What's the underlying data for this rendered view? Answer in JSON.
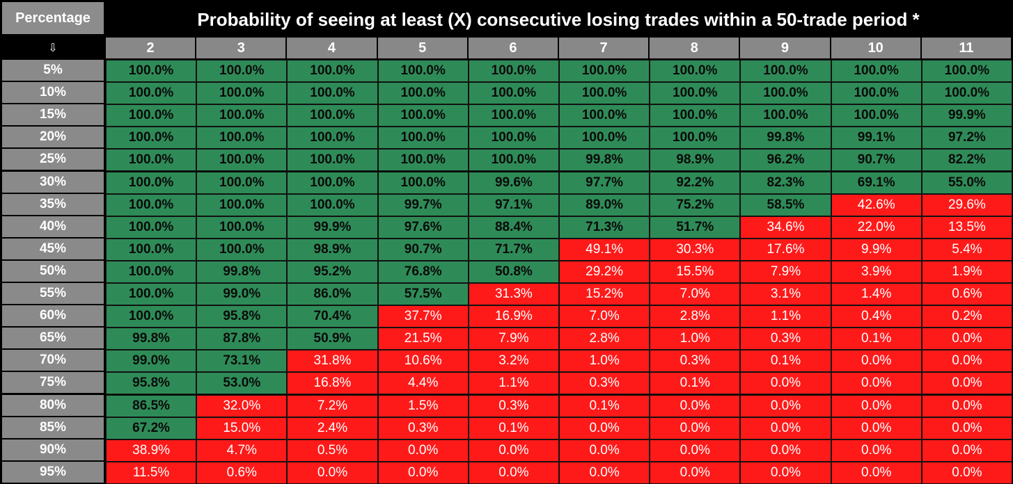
{
  "chart_data": {
    "type": "heatmap",
    "title": "Probability of seeing at least (X) consecutive losing trades within a 50-trade period *",
    "corner_label": "Percentage",
    "arrow_glyph": "⇩",
    "columns": [
      "2",
      "3",
      "4",
      "5",
      "6",
      "7",
      "8",
      "9",
      "10",
      "11"
    ],
    "rows": [
      "5%",
      "10%",
      "15%",
      "20%",
      "25%",
      "30%",
      "35%",
      "40%",
      "45%",
      "50%",
      "55%",
      "60%",
      "65%",
      "70%",
      "75%",
      "80%",
      "85%",
      "90%",
      "95%"
    ],
    "values": [
      [
        "100.0%",
        "100.0%",
        "100.0%",
        "100.0%",
        "100.0%",
        "100.0%",
        "100.0%",
        "100.0%",
        "100.0%",
        "100.0%"
      ],
      [
        "100.0%",
        "100.0%",
        "100.0%",
        "100.0%",
        "100.0%",
        "100.0%",
        "100.0%",
        "100.0%",
        "100.0%",
        "100.0%"
      ],
      [
        "100.0%",
        "100.0%",
        "100.0%",
        "100.0%",
        "100.0%",
        "100.0%",
        "100.0%",
        "100.0%",
        "100.0%",
        "99.9%"
      ],
      [
        "100.0%",
        "100.0%",
        "100.0%",
        "100.0%",
        "100.0%",
        "100.0%",
        "100.0%",
        "99.8%",
        "99.1%",
        "97.2%"
      ],
      [
        "100.0%",
        "100.0%",
        "100.0%",
        "100.0%",
        "100.0%",
        "99.8%",
        "98.9%",
        "96.2%",
        "90.7%",
        "82.2%"
      ],
      [
        "100.0%",
        "100.0%",
        "100.0%",
        "100.0%",
        "99.6%",
        "97.7%",
        "92.2%",
        "82.3%",
        "69.1%",
        "55.0%"
      ],
      [
        "100.0%",
        "100.0%",
        "100.0%",
        "99.7%",
        "97.1%",
        "89.0%",
        "75.2%",
        "58.5%",
        "42.6%",
        "29.6%"
      ],
      [
        "100.0%",
        "100.0%",
        "99.9%",
        "97.6%",
        "88.4%",
        "71.3%",
        "51.7%",
        "34.6%",
        "22.0%",
        "13.5%"
      ],
      [
        "100.0%",
        "100.0%",
        "98.9%",
        "90.7%",
        "71.7%",
        "49.1%",
        "30.3%",
        "17.6%",
        "9.9%",
        "5.4%"
      ],
      [
        "100.0%",
        "99.8%",
        "95.2%",
        "76.8%",
        "50.8%",
        "29.2%",
        "15.5%",
        "7.9%",
        "3.9%",
        "1.9%"
      ],
      [
        "100.0%",
        "99.0%",
        "86.0%",
        "57.5%",
        "31.3%",
        "15.2%",
        "7.0%",
        "3.1%",
        "1.4%",
        "0.6%"
      ],
      [
        "100.0%",
        "95.8%",
        "70.4%",
        "37.7%",
        "16.9%",
        "7.0%",
        "2.8%",
        "1.1%",
        "0.4%",
        "0.2%"
      ],
      [
        "99.8%",
        "87.8%",
        "50.9%",
        "21.5%",
        "7.9%",
        "2.8%",
        "1.0%",
        "0.3%",
        "0.1%",
        "0.0%"
      ],
      [
        "99.0%",
        "73.1%",
        "31.8%",
        "10.6%",
        "3.2%",
        "1.0%",
        "0.3%",
        "0.1%",
        "0.0%",
        "0.0%"
      ],
      [
        "95.8%",
        "53.0%",
        "16.8%",
        "4.4%",
        "1.1%",
        "0.3%",
        "0.1%",
        "0.0%",
        "0.0%",
        "0.0%"
      ],
      [
        "86.5%",
        "32.0%",
        "7.2%",
        "1.5%",
        "0.3%",
        "0.1%",
        "0.0%",
        "0.0%",
        "0.0%",
        "0.0%"
      ],
      [
        "67.2%",
        "15.0%",
        "2.4%",
        "0.3%",
        "0.1%",
        "0.0%",
        "0.0%",
        "0.0%",
        "0.0%",
        "0.0%"
      ],
      [
        "38.9%",
        "4.7%",
        "0.5%",
        "0.0%",
        "0.0%",
        "0.0%",
        "0.0%",
        "0.0%",
        "0.0%",
        "0.0%"
      ],
      [
        "11.5%",
        "0.6%",
        "0.0%",
        "0.0%",
        "0.0%",
        "0.0%",
        "0.0%",
        "0.0%",
        "0.0%",
        "0.0%"
      ]
    ],
    "threshold_percent": 50,
    "colors": {
      "high": "#2e8b57",
      "low": "#ff1a1a",
      "header": "#888888",
      "background": "#000000"
    }
  }
}
